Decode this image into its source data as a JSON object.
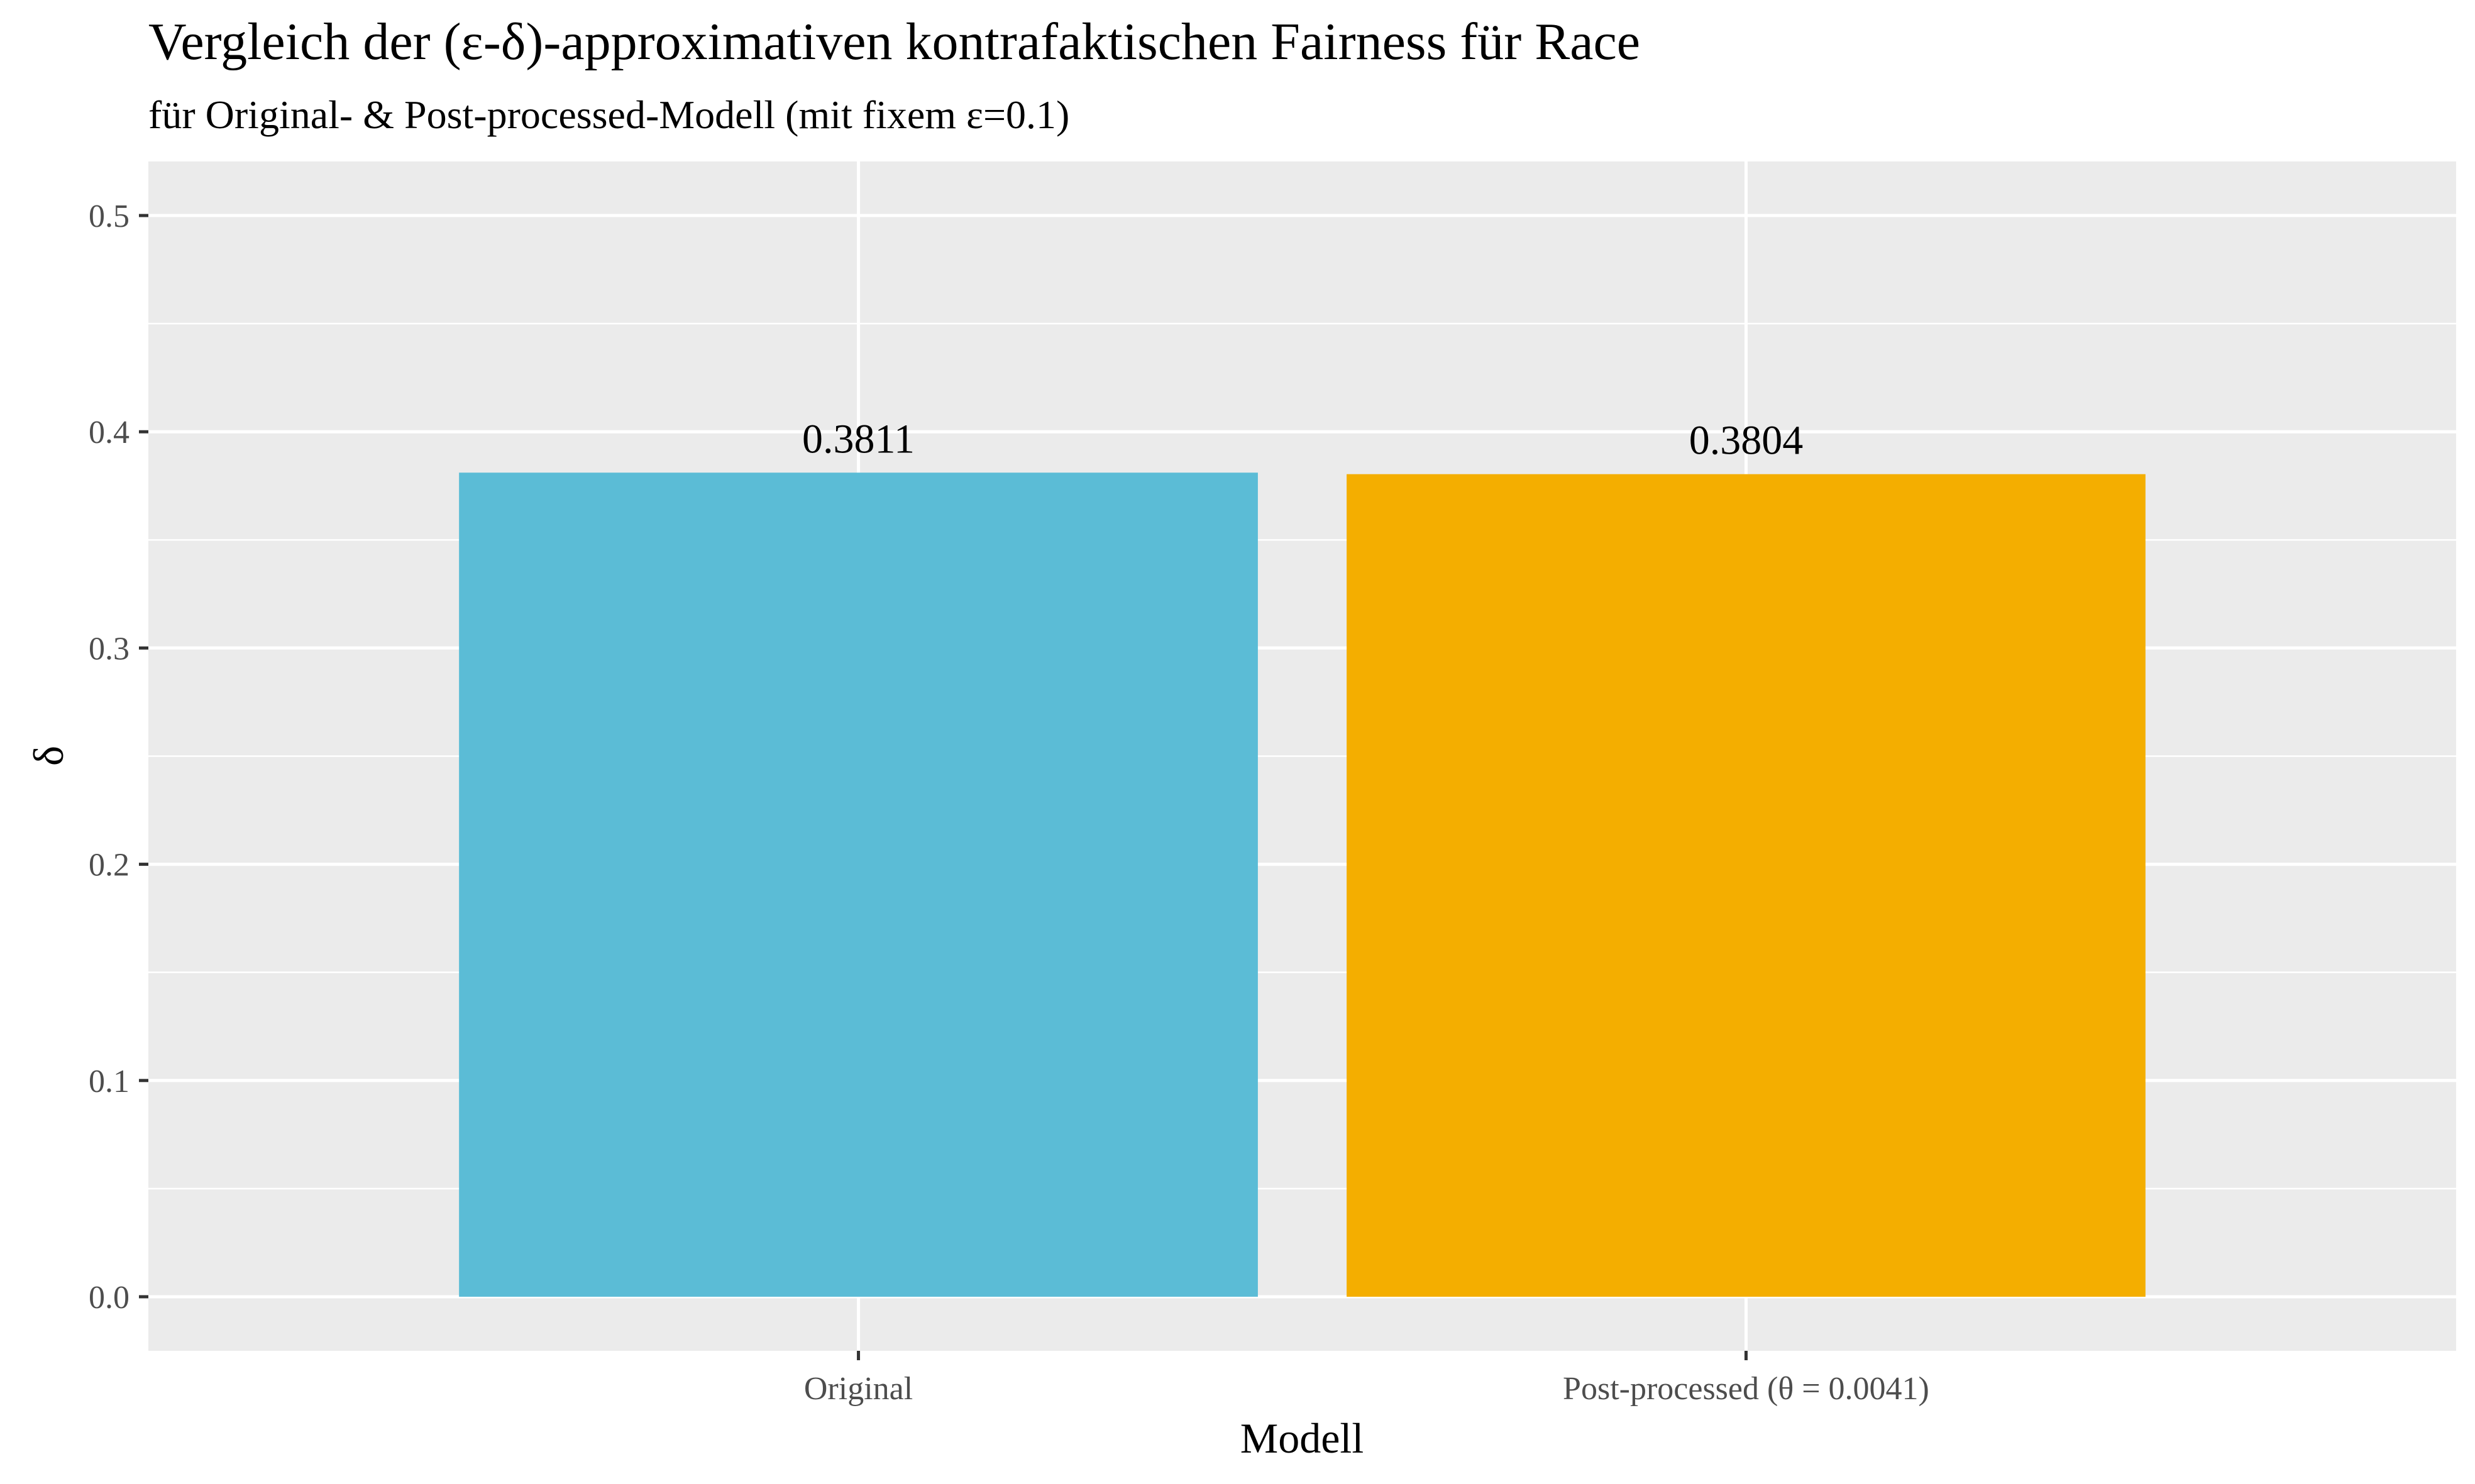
{
  "chart_data": {
    "type": "bar",
    "title": "Vergleich der (ε-δ)-approximativen kontrafaktischen Fairness für Race",
    "subtitle": "für Original- & Post-processed-Modell (mit fixem ε=0.1)",
    "xlabel": "Modell",
    "ylabel": "δ",
    "categories": [
      "Original",
      "Post-processed (θ = 0.0041)"
    ],
    "values": [
      0.3811,
      0.3804
    ],
    "data_labels": [
      "0.3811",
      "0.3804"
    ],
    "colors": [
      "#5bbcd6",
      "#f4ae00"
    ],
    "ylim": [
      -0.025,
      0.525
    ],
    "yticks": [
      0.0,
      0.1,
      0.2,
      0.3,
      0.4,
      0.5
    ],
    "ytick_labels": [
      "0.0",
      "0.1",
      "0.2",
      "0.3",
      "0.4",
      "0.5"
    ],
    "grid": true,
    "legend": "none",
    "panel_background": "#ebebeb"
  }
}
